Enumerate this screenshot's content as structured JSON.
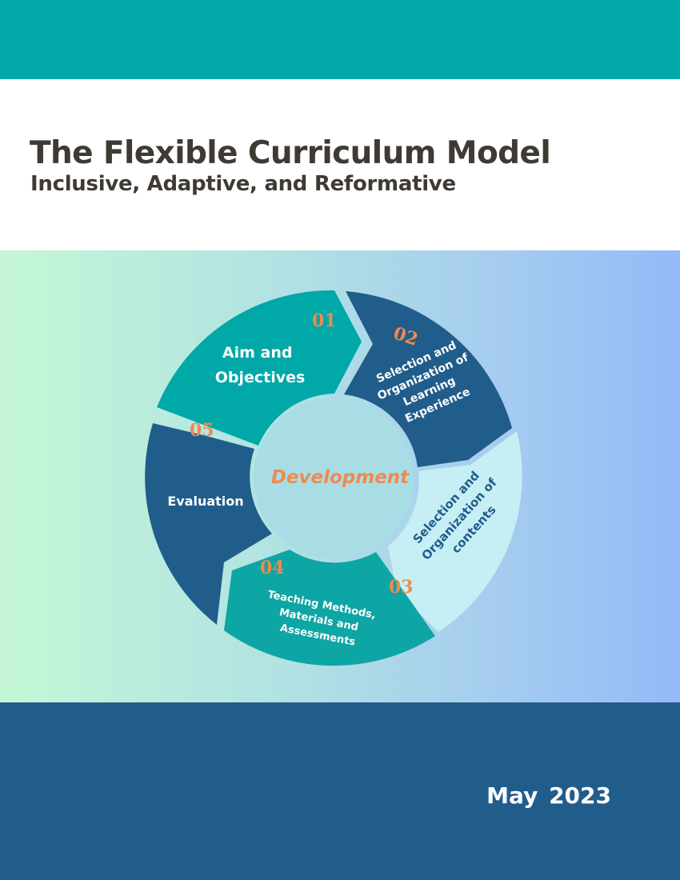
{
  "colors": {
    "teal": "#00a8a8",
    "navy": "#215d8b",
    "light_aqua": "#c6eff5",
    "mid_teal": "#0ea5a5",
    "orange": "#ef8a4e",
    "title_text": "#3f3a33"
  },
  "header": {
    "title": "The Flexible Curriculum Model",
    "subtitle": "Inclusive, Adaptive, and Reformative"
  },
  "diagram": {
    "center_label": "Development",
    "segments": [
      {
        "number": "01",
        "lines": [
          "Aim and",
          "Objectives"
        ]
      },
      {
        "number": "02",
        "lines": [
          "Selection and",
          "Organization of",
          "Learning",
          "Experience"
        ]
      },
      {
        "number": "03",
        "lines": [
          "Selection and",
          "Organization of",
          "contents"
        ]
      },
      {
        "number": "04",
        "lines": [
          "Teaching Methods,",
          "Materials and",
          "Assessments"
        ]
      },
      {
        "number": "05",
        "lines": [
          "Evaluation"
        ]
      }
    ]
  },
  "footer": {
    "date": "May  2023"
  }
}
